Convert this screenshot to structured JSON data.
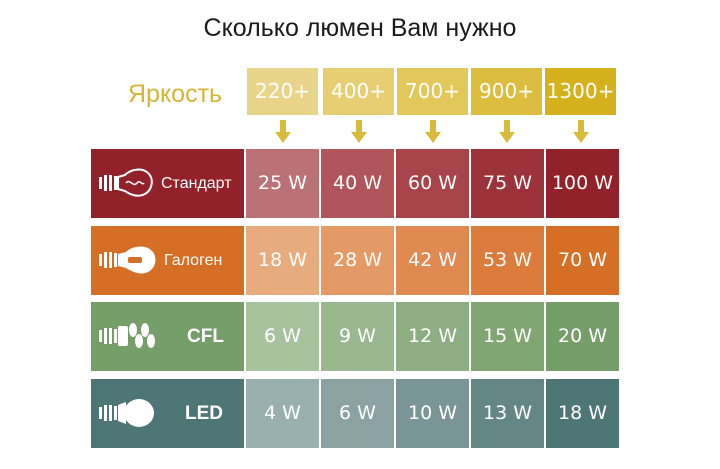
{
  "title": "Сколько люмен Вам нужно",
  "brightness_label": "Яркость",
  "lumens": [
    "220+",
    "400+",
    "700+",
    "900+",
    "1300+"
  ],
  "rows": [
    {
      "label": "Стандарт",
      "icon": "incandescent-bulb-icon",
      "values": [
        "25 W",
        "40 W",
        "60 W",
        "75 W",
        "100 W"
      ]
    },
    {
      "label": "Галоген",
      "icon": "halogen-bulb-icon",
      "values": [
        "18 W",
        "28 W",
        "42 W",
        "53 W",
        "70 W"
      ]
    },
    {
      "label": "CFL",
      "icon": "cfl-bulb-icon",
      "values": [
        "6 W",
        "9 W",
        "12 W",
        "15 W",
        "20 W"
      ]
    },
    {
      "label": "LED",
      "icon": "led-bulb-icon",
      "values": [
        "4 W",
        "6 W",
        "10 W",
        "13 W",
        "18 W"
      ]
    }
  ],
  "colors": {
    "lumen_header": [
      "#e9d58a",
      "#e6cf72",
      "#e2c75a",
      "#dcbd3f",
      "#d4b11d"
    ],
    "arrow": "#d8bb3a",
    "row_label_bg": [
      "#93212a",
      "#d56f25",
      "#759e68",
      "#4f7677"
    ],
    "cells": [
      [
        "#bb7276",
        "#b0555a",
        "#a7444a",
        "#9c333a",
        "#93212a"
      ],
      [
        "#e8ab7d",
        "#e49a65",
        "#e08950",
        "#db7c3c",
        "#d56f25"
      ],
      [
        "#a7c39d",
        "#9ab890",
        "#8cae82",
        "#81a674",
        "#759e68"
      ],
      [
        "#98b0ae",
        "#8aa3a2",
        "#7a9595",
        "#648685",
        "#4f7677"
      ]
    ]
  }
}
